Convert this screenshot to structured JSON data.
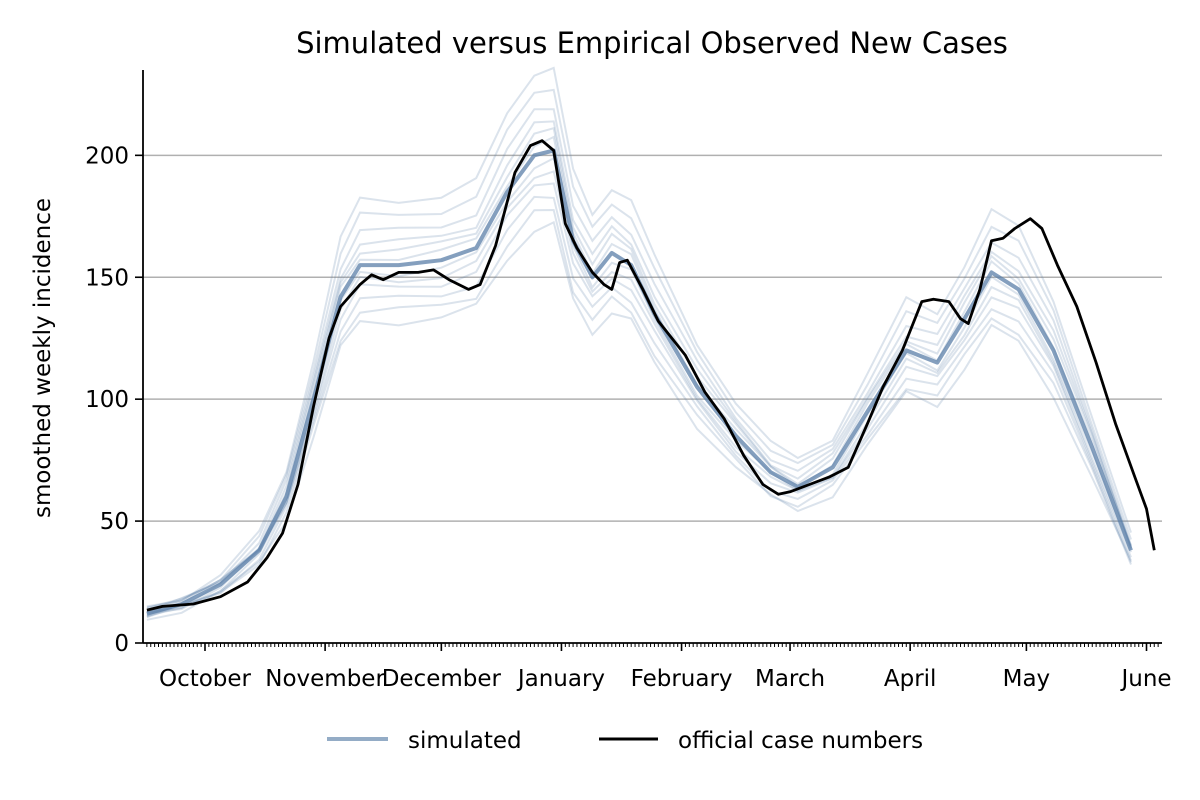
{
  "chart_data": {
    "type": "line",
    "title": "Simulated versus Empirical Observed New Cases",
    "xlabel": "",
    "ylabel": "smoothed weekly incidence",
    "x_start": "2020-09-15",
    "x_end": "2021-06-05",
    "ylim": [
      0,
      235
    ],
    "yticks": [
      0,
      50,
      100,
      150,
      200
    ],
    "grid": "horizontal",
    "legend_position": "bottom-center",
    "month_ticks": [
      {
        "date": "2020-10-01",
        "label": "October"
      },
      {
        "date": "2020-11-01",
        "label": "November"
      },
      {
        "date": "2020-12-01",
        "label": "December"
      },
      {
        "date": "2021-01-01",
        "label": "January"
      },
      {
        "date": "2021-02-01",
        "label": "February"
      },
      {
        "date": "2021-03-01",
        "label": "March"
      },
      {
        "date": "2021-04-01",
        "label": "April"
      },
      {
        "date": "2021-05-01",
        "label": "May"
      },
      {
        "date": "2021-06-01",
        "label": "June"
      }
    ],
    "colors": {
      "simulated": "#5b7fa8",
      "official": "#000000",
      "grid": "#b0b0b0"
    },
    "series": [
      {
        "name": "simulated",
        "kind": "ensemble_central",
        "points": [
          [
            "2020-09-16",
            12
          ],
          [
            "2020-09-25",
            16
          ],
          [
            "2020-10-05",
            24
          ],
          [
            "2020-10-15",
            38
          ],
          [
            "2020-10-22",
            60
          ],
          [
            "2020-10-29",
            100
          ],
          [
            "2020-11-05",
            142
          ],
          [
            "2020-11-10",
            155
          ],
          [
            "2020-11-20",
            155
          ],
          [
            "2020-12-01",
            157
          ],
          [
            "2020-12-10",
            162
          ],
          [
            "2020-12-18",
            185
          ],
          [
            "2020-12-25",
            200
          ],
          [
            "2020-12-30",
            202
          ],
          [
            "2021-01-04",
            165
          ],
          [
            "2021-01-09",
            150
          ],
          [
            "2021-01-14",
            160
          ],
          [
            "2021-01-19",
            155
          ],
          [
            "2021-01-25",
            135
          ],
          [
            "2021-02-05",
            105
          ],
          [
            "2021-02-15",
            85
          ],
          [
            "2021-02-24",
            70
          ],
          [
            "2021-03-03",
            64
          ],
          [
            "2021-03-12",
            72
          ],
          [
            "2021-03-21",
            95
          ],
          [
            "2021-03-31",
            120
          ],
          [
            "2021-04-08",
            115
          ],
          [
            "2021-04-15",
            133
          ],
          [
            "2021-04-22",
            152
          ],
          [
            "2021-04-29",
            145
          ],
          [
            "2021-05-08",
            120
          ],
          [
            "2021-05-18",
            80
          ],
          [
            "2021-05-28",
            38
          ]
        ]
      },
      {
        "name": "official case numbers",
        "points": [
          [
            "2020-09-16",
            13.5
          ],
          [
            "2020-09-20",
            15
          ],
          [
            "2020-09-28",
            16
          ],
          [
            "2020-10-05",
            19
          ],
          [
            "2020-10-12",
            25
          ],
          [
            "2020-10-17",
            35
          ],
          [
            "2020-10-21",
            45
          ],
          [
            "2020-10-25",
            65
          ],
          [
            "2020-10-29",
            97
          ],
          [
            "2020-11-02",
            125
          ],
          [
            "2020-11-05",
            138
          ],
          [
            "2020-11-10",
            147
          ],
          [
            "2020-11-13",
            151
          ],
          [
            "2020-11-16",
            149
          ],
          [
            "2020-11-20",
            152
          ],
          [
            "2020-11-25",
            152
          ],
          [
            "2020-11-29",
            153
          ],
          [
            "2020-12-03",
            149
          ],
          [
            "2020-12-08",
            145
          ],
          [
            "2020-12-11",
            147
          ],
          [
            "2020-12-15",
            163
          ],
          [
            "2020-12-20",
            193
          ],
          [
            "2020-12-24",
            204
          ],
          [
            "2020-12-27",
            206
          ],
          [
            "2020-12-30",
            202
          ],
          [
            "2021-01-02",
            172
          ],
          [
            "2021-01-05",
            162
          ],
          [
            "2021-01-09",
            152
          ],
          [
            "2021-01-12",
            147
          ],
          [
            "2021-01-14",
            145
          ],
          [
            "2021-01-16",
            156
          ],
          [
            "2021-01-18",
            157
          ],
          [
            "2021-01-22",
            145
          ],
          [
            "2021-01-26",
            132
          ],
          [
            "2021-02-02",
            118
          ],
          [
            "2021-02-07",
            103
          ],
          [
            "2021-02-12",
            92
          ],
          [
            "2021-02-17",
            77
          ],
          [
            "2021-02-22",
            65
          ],
          [
            "2021-02-26",
            61
          ],
          [
            "2021-03-01",
            62
          ],
          [
            "2021-03-06",
            65
          ],
          [
            "2021-03-11",
            68
          ],
          [
            "2021-03-16",
            72
          ],
          [
            "2021-03-21",
            90
          ],
          [
            "2021-03-25",
            105
          ],
          [
            "2021-03-30",
            120
          ],
          [
            "2021-04-04",
            140
          ],
          [
            "2021-04-07",
            141
          ],
          [
            "2021-04-11",
            140
          ],
          [
            "2021-04-14",
            133
          ],
          [
            "2021-04-16",
            131
          ],
          [
            "2021-04-19",
            145
          ],
          [
            "2021-04-22",
            165
          ],
          [
            "2021-04-25",
            166
          ],
          [
            "2021-04-28",
            170
          ],
          [
            "2021-05-02",
            174
          ],
          [
            "2021-05-05",
            170
          ],
          [
            "2021-05-09",
            155
          ],
          [
            "2021-05-14",
            138
          ],
          [
            "2021-05-19",
            115
          ],
          [
            "2021-05-24",
            90
          ],
          [
            "2021-05-29",
            68
          ],
          [
            "2021-06-01",
            55
          ],
          [
            "2021-06-03",
            38
          ]
        ]
      }
    ]
  },
  "legend": {
    "simulated_label": "simulated",
    "official_label": "official case numbers"
  }
}
